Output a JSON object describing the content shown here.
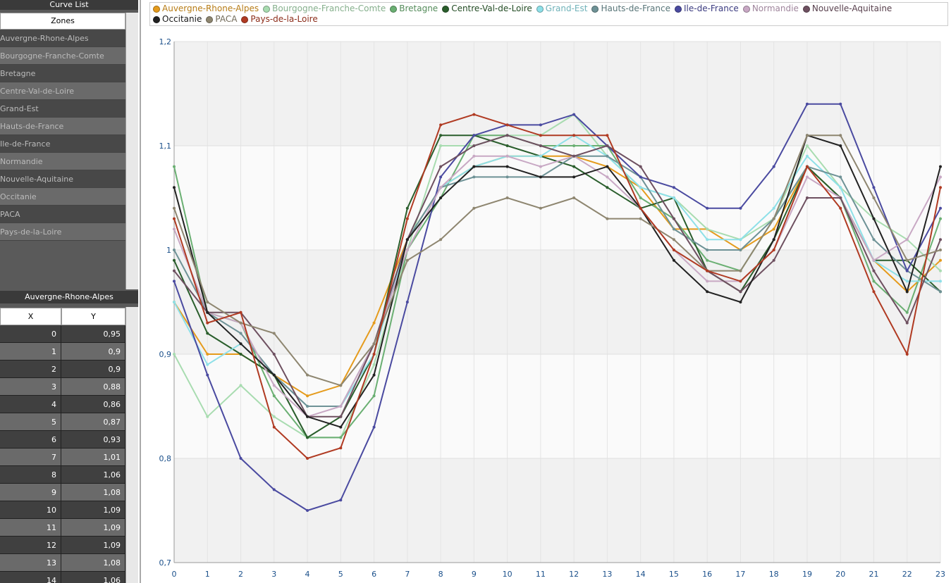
{
  "curve_list": {
    "title": "Curve List",
    "header": "Zones",
    "items": [
      "Auvergne-Rhone-Alpes",
      "Bourgogne-Franche-Comte",
      "Bretagne",
      "Centre-Val-de-Loire",
      "Grand-Est",
      "Hauts-de-France",
      "Ile-de-France",
      "Normandie",
      "Nouvelle-Aquitaine",
      "Occitanie",
      "PACA",
      "Pays-de-la-Loire"
    ]
  },
  "data_table": {
    "title": "Auvergne-Rhone-Alpes",
    "columns": [
      "X",
      "Y"
    ],
    "rows": [
      [
        "0",
        "0,95"
      ],
      [
        "1",
        "0,9"
      ],
      [
        "2",
        "0,9"
      ],
      [
        "3",
        "0,88"
      ],
      [
        "4",
        "0,86"
      ],
      [
        "5",
        "0,87"
      ],
      [
        "6",
        "0,93"
      ],
      [
        "7",
        "1,01"
      ],
      [
        "8",
        "1,06"
      ],
      [
        "9",
        "1,08"
      ],
      [
        "10",
        "1,09"
      ],
      [
        "11",
        "1,09"
      ],
      [
        "12",
        "1,09"
      ],
      [
        "13",
        "1,08"
      ],
      [
        "14",
        "1,06"
      ]
    ]
  },
  "chart_data": {
    "type": "line",
    "grid": true,
    "x": [
      0,
      1,
      2,
      3,
      4,
      5,
      6,
      7,
      8,
      9,
      10,
      11,
      12,
      13,
      14,
      15,
      16,
      17,
      18,
      19,
      20,
      21,
      22,
      23
    ],
    "xlim": [
      0,
      23
    ],
    "xticks": [
      0,
      1,
      2,
      3,
      4,
      5,
      6,
      7,
      8,
      9,
      10,
      11,
      12,
      13,
      14,
      15,
      16,
      17,
      18,
      19,
      20,
      21,
      22,
      23
    ],
    "ylim": [
      0.7,
      1.2
    ],
    "yticks": [
      {
        "value": 0.7,
        "label": "0,7"
      },
      {
        "value": 0.8,
        "label": "0,8"
      },
      {
        "value": 0.9,
        "label": "0,9"
      },
      1,
      {
        "value": 1.1,
        "label": "1,1"
      },
      {
        "value": 1.2,
        "label": "1,2"
      }
    ],
    "series": [
      {
        "name": "Auvergne-Rhone-Alpes",
        "color": "#e59b1c",
        "values": [
          0.95,
          0.9,
          0.9,
          0.88,
          0.86,
          0.87,
          0.93,
          1.01,
          1.06,
          1.08,
          1.09,
          1.09,
          1.09,
          1.08,
          1.06,
          1.02,
          1.02,
          1.0,
          1.02,
          1.08,
          1.05,
          0.99,
          0.96,
          0.99
        ]
      },
      {
        "name": "Bourgogne-Franche-Comte",
        "color": "#a8dcb0",
        "values": [
          0.9,
          0.84,
          0.87,
          0.84,
          0.82,
          0.82,
          0.89,
          1.0,
          1.1,
          1.1,
          1.11,
          1.11,
          1.13,
          1.09,
          1.06,
          1.05,
          1.02,
          1.01,
          1.03,
          1.1,
          1.06,
          1.03,
          1.01,
          0.98
        ]
      },
      {
        "name": "Bretagne",
        "color": "#6aaf72",
        "values": [
          1.08,
          0.94,
          0.93,
          0.86,
          0.82,
          0.82,
          0.86,
          1.0,
          1.05,
          1.11,
          1.11,
          1.1,
          1.1,
          1.1,
          1.05,
          1.03,
          0.99,
          0.98,
          1.03,
          1.08,
          1.05,
          0.97,
          0.94,
          1.03
        ]
      },
      {
        "name": "Centre-Val-de-Loire",
        "color": "#2a5e2c",
        "values": [
          0.99,
          0.92,
          0.9,
          0.88,
          0.82,
          0.84,
          0.9,
          1.04,
          1.11,
          1.11,
          1.1,
          1.09,
          1.08,
          1.06,
          1.04,
          1.05,
          0.98,
          0.96,
          1.01,
          1.08,
          1.05,
          0.99,
          0.99,
          0.96
        ]
      },
      {
        "name": "Grand-Est",
        "color": "#8ee0e8",
        "values": [
          0.95,
          0.89,
          0.91,
          0.88,
          0.85,
          0.85,
          0.9,
          1.01,
          1.06,
          1.08,
          1.09,
          1.09,
          1.11,
          1.09,
          1.06,
          1.05,
          1.01,
          1.01,
          1.04,
          1.09,
          1.06,
          0.99,
          0.97,
          0.97
        ]
      },
      {
        "name": "Hauts-de-France",
        "color": "#6e9296",
        "values": [
          1.0,
          0.94,
          0.92,
          0.88,
          0.85,
          0.85,
          0.91,
          1.01,
          1.06,
          1.07,
          1.07,
          1.07,
          1.09,
          1.09,
          1.07,
          1.02,
          1.0,
          1.0,
          1.03,
          1.08,
          1.07,
          1.01,
          0.98,
          0.96
        ]
      },
      {
        "name": "Ile-de-France",
        "color": "#4a4aa0",
        "values": [
          0.97,
          0.88,
          0.8,
          0.77,
          0.75,
          0.76,
          0.83,
          0.95,
          1.07,
          1.11,
          1.12,
          1.12,
          1.13,
          1.1,
          1.07,
          1.06,
          1.04,
          1.04,
          1.08,
          1.14,
          1.14,
          1.06,
          0.98,
          1.04
        ]
      },
      {
        "name": "Normandie",
        "color": "#c8a8c4",
        "values": [
          1.02,
          0.94,
          0.93,
          0.87,
          0.84,
          0.85,
          0.91,
          1.0,
          1.06,
          1.09,
          1.09,
          1.08,
          1.09,
          1.07,
          1.04,
          1.0,
          0.97,
          0.97,
          1.0,
          1.07,
          1.05,
          0.99,
          1.01,
          1.07
        ]
      },
      {
        "name": "Nouvelle-Aquitaine",
        "color": "#6e5060",
        "values": [
          0.98,
          0.94,
          0.94,
          0.9,
          0.84,
          0.84,
          0.91,
          1.01,
          1.08,
          1.1,
          1.11,
          1.1,
          1.09,
          1.1,
          1.08,
          1.03,
          0.98,
          0.96,
          0.99,
          1.05,
          1.05,
          0.98,
          0.93,
          1.01
        ]
      },
      {
        "name": "Occitanie",
        "color": "#222222",
        "values": [
          1.06,
          0.94,
          0.91,
          0.88,
          0.84,
          0.83,
          0.88,
          1.01,
          1.05,
          1.08,
          1.08,
          1.07,
          1.07,
          1.08,
          1.04,
          0.99,
          0.96,
          0.95,
          1.01,
          1.11,
          1.1,
          1.03,
          0.96,
          1.08
        ]
      },
      {
        "name": "PACA",
        "color": "#8e8670",
        "values": [
          1.04,
          0.95,
          0.93,
          0.92,
          0.88,
          0.87,
          0.91,
          0.99,
          1.01,
          1.04,
          1.05,
          1.04,
          1.05,
          1.03,
          1.03,
          1.01,
          0.98,
          0.98,
          1.03,
          1.11,
          1.11,
          1.05,
          0.99,
          1.0
        ]
      },
      {
        "name": "Pays-de-la-Loire",
        "color": "#b03a22",
        "values": [
          1.03,
          0.93,
          0.94,
          0.83,
          0.8,
          0.81,
          0.9,
          1.03,
          1.12,
          1.13,
          1.12,
          1.11,
          1.11,
          1.11,
          1.04,
          1.0,
          0.98,
          0.97,
          1.0,
          1.08,
          1.04,
          0.96,
          0.9,
          1.06
        ]
      }
    ]
  }
}
